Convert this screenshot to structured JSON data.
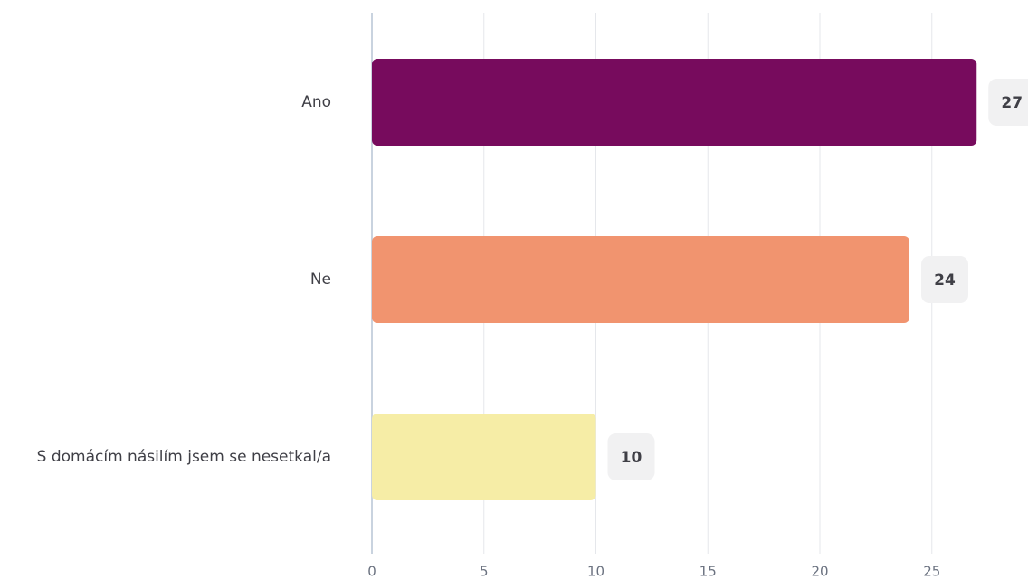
{
  "chart_data": {
    "type": "bar",
    "orientation": "horizontal",
    "categories": [
      "Ano",
      "Ne",
      "S domácím násilím jsem se nesetkal/a"
    ],
    "values": [
      27,
      24,
      10
    ],
    "colors": [
      "#770b5d",
      "#f1946f",
      "#f6eda6"
    ],
    "x_ticks": [
      0,
      5,
      10,
      15,
      20,
      25
    ],
    "xlim": [
      0,
      28
    ],
    "grid": true,
    "data_labels": true,
    "legend": "none"
  },
  "colors": {
    "grid": "#e5e7eb",
    "axis": "#c9d3df",
    "badge": "#f1f1f2"
  }
}
